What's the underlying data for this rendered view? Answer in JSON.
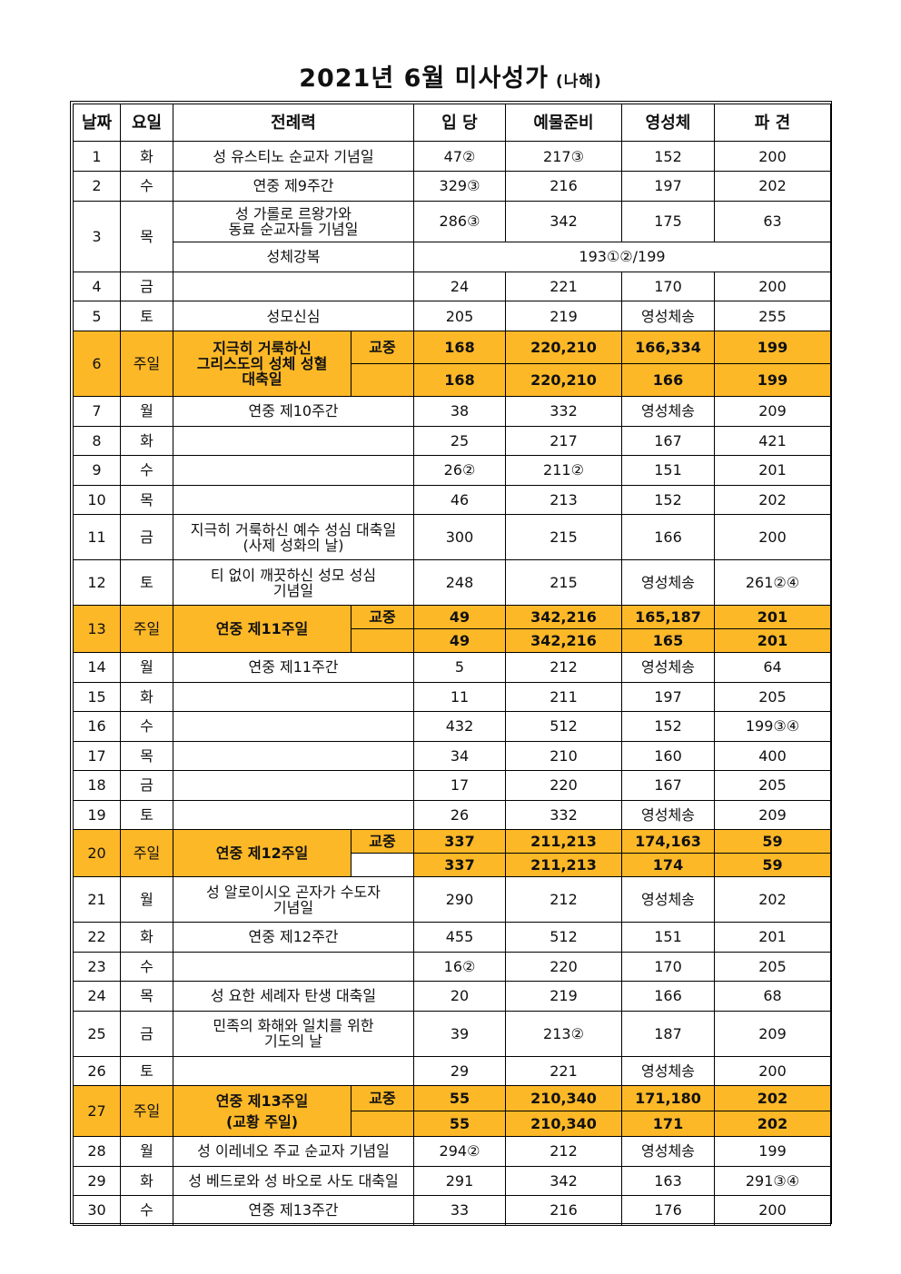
{
  "title": "2021년 6월 미사성가",
  "subtitle": "(나해)",
  "headers": {
    "date": "날짜",
    "day": "요일",
    "liturgy": "전례력",
    "entrance": "입 당",
    "offertory": "예물준비",
    "communion": "영성체",
    "dismissal": "파 견"
  },
  "r1": {
    "date": "1",
    "day": "화",
    "name": "성 유스티노 순교자 기념일",
    "en": "47②",
    "of": "217③",
    "co": "152",
    "di": "200"
  },
  "r2": {
    "date": "2",
    "day": "수",
    "name": "연중 제9주간",
    "en": "329③",
    "of": "216",
    "co": "197",
    "di": "202"
  },
  "r3": {
    "date": "3",
    "day": "목",
    "name1": "성 가롤로 르왕가와",
    "name2": "동료 순교자들 기념일",
    "en": "286③",
    "of": "342",
    "co": "175",
    "di": "63",
    "bname": "성체강복",
    "bval": "193①②/199"
  },
  "r4": {
    "date": "4",
    "day": "금",
    "name": "",
    "en": "24",
    "of": "221",
    "co": "170",
    "di": "200"
  },
  "r5": {
    "date": "5",
    "day": "토",
    "name": "성모신심",
    "en": "205",
    "of": "219",
    "co": "영성체송",
    "di": "255"
  },
  "r6": {
    "date": "6",
    "day": "주일",
    "name1": "지극히 거룩하신",
    "name2": "그리스도의 성체 성혈",
    "name3": "대축일",
    "tag": "교중",
    "a": {
      "en": "168",
      "of": "220,210",
      "co": "166,334",
      "di": "199"
    },
    "b": {
      "en": "168",
      "of": "220,210",
      "co": "166",
      "di": "199"
    }
  },
  "r7": {
    "date": "7",
    "day": "월",
    "name": "연중 제10주간",
    "en": "38",
    "of": "332",
    "co": "영성체송",
    "di": "209"
  },
  "r8": {
    "date": "8",
    "day": "화",
    "name": "",
    "en": "25",
    "of": "217",
    "co": "167",
    "di": "421"
  },
  "r9": {
    "date": "9",
    "day": "수",
    "name": "",
    "en": "26②",
    "of": "211②",
    "co": "151",
    "di": "201"
  },
  "r10": {
    "date": "10",
    "day": "목",
    "name": "",
    "en": "46",
    "of": "213",
    "co": "152",
    "di": "202"
  },
  "r11": {
    "date": "11",
    "day": "금",
    "name1": "지극히 거룩하신 예수 성심 대축일",
    "name2": "(사제 성화의 날)",
    "en": "300",
    "of": "215",
    "co": "166",
    "di": "200"
  },
  "r12": {
    "date": "12",
    "day": "토",
    "name1": "티 없이 깨끗하신 성모 성심",
    "name2": "기념일",
    "en": "248",
    "of": "215",
    "co": "영성체송",
    "di": "261②④"
  },
  "r13": {
    "date": "13",
    "day": "주일",
    "name": "연중 제11주일",
    "tag": "교중",
    "a": {
      "en": "49",
      "of": "342,216",
      "co": "165,187",
      "di": "201"
    },
    "b": {
      "en": "49",
      "of": "342,216",
      "co": "165",
      "di": "201"
    }
  },
  "r14": {
    "date": "14",
    "day": "월",
    "name": "연중 제11주간",
    "en": "5",
    "of": "212",
    "co": "영성체송",
    "di": "64"
  },
  "r15": {
    "date": "15",
    "day": "화",
    "name": "",
    "en": "11",
    "of": "211",
    "co": "197",
    "di": "205"
  },
  "r16": {
    "date": "16",
    "day": "수",
    "name": "",
    "en": "432",
    "of": "512",
    "co": "152",
    "di": "199③④"
  },
  "r17": {
    "date": "17",
    "day": "목",
    "name": "",
    "en": "34",
    "of": "210",
    "co": "160",
    "di": "400"
  },
  "r18": {
    "date": "18",
    "day": "금",
    "name": "",
    "en": "17",
    "of": "220",
    "co": "167",
    "di": "205"
  },
  "r19": {
    "date": "19",
    "day": "토",
    "name": "",
    "en": "26",
    "of": "332",
    "co": "영성체송",
    "di": "209"
  },
  "r20": {
    "date": "20",
    "day": "주일",
    "name": "연중 제12주일",
    "tag": "교중",
    "a": {
      "en": "337",
      "of": "211,213",
      "co": "174,163",
      "di": "59"
    },
    "b": {
      "en": "337",
      "of": "211,213",
      "co": "174",
      "di": "59"
    }
  },
  "r21": {
    "date": "21",
    "day": "월",
    "name1": "성 알로이시오 곤자가 수도자",
    "name2": "기념일",
    "en": "290",
    "of": "212",
    "co": "영성체송",
    "di": "202"
  },
  "r22": {
    "date": "22",
    "day": "화",
    "name": "연중 제12주간",
    "en": "455",
    "of": "512",
    "co": "151",
    "di": "201"
  },
  "r23": {
    "date": "23",
    "day": "수",
    "name": "",
    "en": "16②",
    "of": "220",
    "co": "170",
    "di": "205"
  },
  "r24": {
    "date": "24",
    "day": "목",
    "name": "성 요한 세례자 탄생 대축일",
    "en": "20",
    "of": "219",
    "co": "166",
    "di": "68"
  },
  "r25": {
    "date": "25",
    "day": "금",
    "name1": "민족의 화해와 일치를 위한",
    "name2": "기도의 날",
    "en": "39",
    "of": "213②",
    "co": "187",
    "di": "209"
  },
  "r26": {
    "date": "26",
    "day": "토",
    "name": "",
    "en": "29",
    "of": "221",
    "co": "영성체송",
    "di": "200"
  },
  "r27": {
    "date": "27",
    "day": "주일",
    "name1": "연중 제13주일",
    "name2": "(교황 주일)",
    "tag": "교중",
    "a": {
      "en": "55",
      "of": "210,340",
      "co": "171,180",
      "di": "202"
    },
    "b": {
      "en": "55",
      "of": "210,340",
      "co": "171",
      "di": "202"
    }
  },
  "r28": {
    "date": "28",
    "day": "월",
    "name": "성 이레네오 주교 순교자 기념일",
    "en": "294②",
    "of": "212",
    "co": "영성체송",
    "di": "199"
  },
  "r29": {
    "date": "29",
    "day": "화",
    "name": "성 베드로와 성 바오로 사도 대축일",
    "en": "291",
    "of": "342",
    "co": "163",
    "di": "291③④"
  },
  "r30": {
    "date": "30",
    "day": "수",
    "name": "연중 제13주간",
    "en": "33",
    "of": "216",
    "co": "176",
    "di": "200"
  },
  "colors": {
    "sunday_highlight": "#FDB827"
  }
}
